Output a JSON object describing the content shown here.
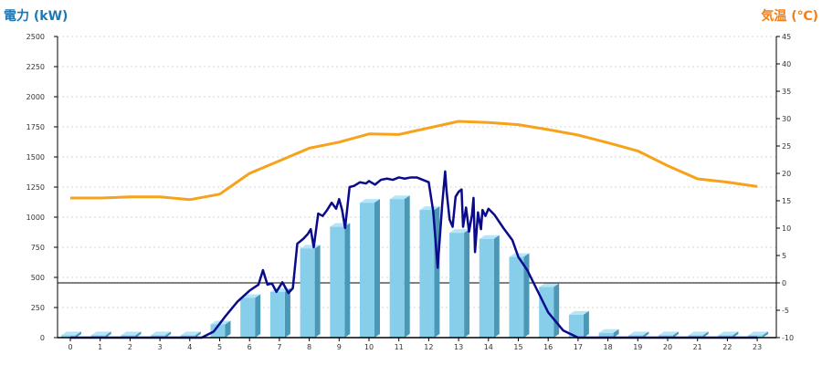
{
  "chart_data": {
    "type": "bar",
    "title_left": "電力 (kW)",
    "title_right": "気温 (℃)",
    "x": [
      0,
      1,
      2,
      3,
      4,
      5,
      6,
      7,
      8,
      9,
      10,
      11,
      12,
      13,
      14,
      15,
      16,
      17,
      18,
      19,
      20,
      21,
      22,
      23
    ],
    "x_tick_labels": [
      "0",
      "1",
      "2",
      "3",
      "4",
      "5",
      "6",
      "7",
      "8",
      "9",
      "10",
      "11",
      "12",
      "13",
      "14",
      "15",
      "16",
      "17",
      "18",
      "19",
      "20",
      "21",
      "22",
      "23"
    ],
    "left_axis": {
      "ylim": [
        0,
        2500
      ],
      "ticks": [
        0,
        250,
        500,
        750,
        1000,
        1250,
        1500,
        1750,
        2000,
        2250,
        2500
      ],
      "tick_labels": [
        "0",
        "250",
        "500",
        "750",
        "1000",
        "1250",
        "1500",
        "1750",
        "2000",
        "2250",
        "2500"
      ]
    },
    "right_axis": {
      "ylim": [
        -10,
        45
      ],
      "ticks": [
        -10,
        -5,
        0,
        5,
        10,
        15,
        20,
        25,
        30,
        35,
        40,
        45
      ],
      "tick_labels": [
        "-10",
        "-5",
        "0",
        "5",
        "10",
        "15",
        "20",
        "25",
        "30",
        "35",
        "40",
        "45"
      ]
    },
    "grid": true,
    "colors": {
      "bar_front": "#87ceeb",
      "bar_side": "#4a98b5",
      "bar_top": "#b5e6f7",
      "power_line": "#0a0a8c",
      "temp_line": "#f6a21a",
      "title_left": "#1f78b4",
      "title_right": "#f07f1b",
      "zero_line": "#000000"
    },
    "series": [
      {
        "kind": "bar",
        "axis": "left",
        "values": [
          20,
          20,
          20,
          20,
          20,
          110,
          330,
          380,
          740,
          920,
          1120,
          1150,
          1060,
          870,
          820,
          670,
          420,
          190,
          40,
          20,
          20,
          20,
          20,
          20
        ]
      },
      {
        "kind": "line",
        "axis": "left",
        "x": [
          0,
          1,
          2,
          3,
          4,
          4.4,
          4.8,
          5.2,
          5.6,
          6.0,
          6.3,
          6.45,
          6.6,
          6.75,
          6.9,
          7.1,
          7.3,
          7.45,
          7.6,
          7.8,
          7.95,
          8.05,
          8.15,
          8.3,
          8.45,
          8.6,
          8.75,
          8.9,
          9.0,
          9.1,
          9.2,
          9.35,
          9.5,
          9.7,
          9.9,
          10.0,
          10.2,
          10.4,
          10.6,
          10.8,
          11.0,
          11.2,
          11.4,
          11.6,
          11.8,
          12.0,
          12.15,
          12.3,
          12.45,
          12.55,
          12.6,
          12.7,
          12.8,
          12.9,
          13.0,
          13.1,
          13.15,
          13.25,
          13.35,
          13.45,
          13.5,
          13.55,
          13.65,
          13.75,
          13.8,
          13.9,
          14.0,
          14.2,
          14.5,
          14.8,
          15.0,
          15.3,
          15.6,
          16.0,
          16.5,
          17.0,
          17.5,
          17.8,
          18.0,
          19,
          20,
          21,
          22,
          23
        ],
        "values": [
          0,
          0,
          0,
          0,
          0,
          0,
          50,
          180,
          300,
          390,
          440,
          560,
          440,
          450,
          380,
          460,
          370,
          410,
          780,
          820,
          860,
          900,
          750,
          1030,
          1010,
          1060,
          1120,
          1070,
          1150,
          1060,
          910,
          1250,
          1260,
          1290,
          1280,
          1300,
          1270,
          1310,
          1320,
          1310,
          1330,
          1320,
          1330,
          1330,
          1310,
          1290,
          1050,
          580,
          1100,
          1380,
          1210,
          980,
          920,
          1170,
          1210,
          1230,
          920,
          1080,
          880,
          1020,
          1160,
          710,
          1040,
          900,
          1060,
          1010,
          1070,
          1020,
          910,
          810,
          670,
          560,
          410,
          210,
          60,
          0,
          0,
          0,
          0,
          0,
          0,
          0,
          0,
          0
        ]
      },
      {
        "kind": "line",
        "axis": "right",
        "values": [
          15.5,
          15.5,
          15.7,
          15.7,
          15.2,
          16.2,
          20,
          22.3,
          24.6,
          25.7,
          27.2,
          27.1,
          28.3,
          29.5,
          29.3,
          28.9,
          28.0,
          27.0,
          25.6,
          24.1,
          21.4,
          19.0,
          18.4,
          17.6
        ]
      }
    ]
  }
}
